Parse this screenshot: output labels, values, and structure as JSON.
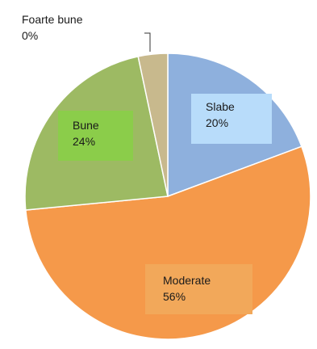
{
  "chart_data": {
    "type": "pie",
    "title": "",
    "slices": [
      {
        "label": "Slabe",
        "value": 20,
        "value_label": "20%",
        "color": "#8eb0dd",
        "label_bg": "#b8dcfa"
      },
      {
        "label": "Moderate",
        "value": 56,
        "value_label": "56%",
        "color": "#f5994a",
        "label_bg": "#f2a85a"
      },
      {
        "label": "Bune",
        "value": 24,
        "value_label": "24%",
        "color": "#9dba63",
        "label_bg": "#8bcd4a"
      },
      {
        "label": "Foarte bune",
        "value": 0,
        "value_label": "0%",
        "color": "#c8b98d",
        "label_bg": ""
      }
    ],
    "start_angle_deg": 0,
    "direction": "clockwise",
    "legend": "none"
  }
}
